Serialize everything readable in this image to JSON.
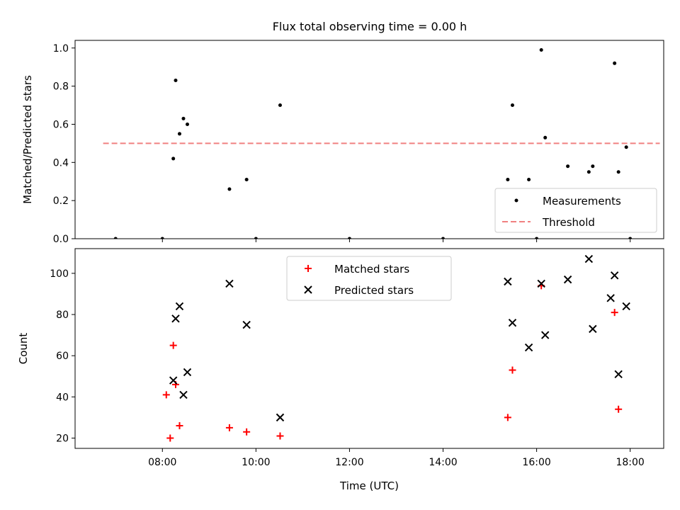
{
  "figure": {
    "title": "Flux total observing time = 0.00 h"
  },
  "chart_data": [
    {
      "type": "scatter",
      "ylabel": "Matched/Predicted stars",
      "xlabel": "",
      "ylim": [
        0,
        1.04
      ],
      "xlim": [
        "06:08",
        "18:43"
      ],
      "yticks": [
        0.0,
        0.2,
        0.4,
        0.6,
        0.8,
        1.0
      ],
      "xticks": [
        "08:00",
        "10:00",
        "12:00",
        "14:00",
        "16:00",
        "18:00"
      ],
      "legend_position": "lower-right",
      "series": [
        {
          "name": "Measurements",
          "marker": "dot",
          "color": "#000000",
          "x": [
            "08:14",
            "08:17",
            "08:22",
            "08:27",
            "08:32",
            "09:26",
            "09:48",
            "10:31",
            "15:23",
            "15:29",
            "15:50",
            "16:06",
            "16:11",
            "16:40",
            "17:07",
            "17:12",
            "17:40",
            "17:45",
            "17:55",
            "07:00",
            "08:00",
            "10:00",
            "12:00",
            "14:00",
            "16:00",
            "18:00"
          ],
          "y": [
            0.42,
            0.83,
            0.55,
            0.63,
            0.6,
            0.26,
            0.31,
            0.7,
            0.31,
            0.7,
            0.31,
            0.99,
            0.53,
            0.38,
            0.35,
            0.38,
            0.92,
            0.35,
            0.48,
            0,
            0,
            0,
            0,
            0,
            0,
            0
          ]
        },
        {
          "name": "Threshold",
          "style": "dashed",
          "color": "#f08080",
          "x": [
            "06:44",
            "18:38"
          ],
          "y": [
            0.5,
            0.5
          ]
        }
      ]
    },
    {
      "type": "scatter",
      "xlabel": "Time (UTC)",
      "ylabel": "Count",
      "ylim": [
        15,
        112
      ],
      "xlim": [
        "06:08",
        "18:43"
      ],
      "yticks": [
        20,
        40,
        60,
        80,
        100
      ],
      "xticks": [
        "08:00",
        "10:00",
        "12:00",
        "14:00",
        "16:00",
        "18:00"
      ],
      "legend_position": "upper-center",
      "series": [
        {
          "name": "Matched stars",
          "marker": "plus",
          "color": "#ff0000",
          "x": [
            "08:05",
            "08:10",
            "08:14",
            "08:17",
            "08:22",
            "09:26",
            "09:48",
            "10:31",
            "15:23",
            "15:29",
            "16:06",
            "17:40",
            "17:45"
          ],
          "y": [
            41,
            20,
            65,
            46,
            26,
            25,
            23,
            21,
            30,
            53,
            94,
            81,
            34
          ]
        },
        {
          "name": "Predicted stars",
          "marker": "x",
          "color": "#000000",
          "x": [
            "08:14",
            "08:17",
            "08:22",
            "08:27",
            "08:32",
            "09:26",
            "09:48",
            "10:31",
            "15:23",
            "15:29",
            "15:50",
            "16:06",
            "16:11",
            "16:40",
            "17:07",
            "17:12",
            "17:35",
            "17:40",
            "17:45",
            "17:55"
          ],
          "y": [
            48,
            78,
            84,
            41,
            52,
            95,
            75,
            30,
            96,
            76,
            64,
            95,
            70,
            97,
            107,
            73,
            88,
            99,
            51,
            84
          ]
        }
      ]
    }
  ]
}
